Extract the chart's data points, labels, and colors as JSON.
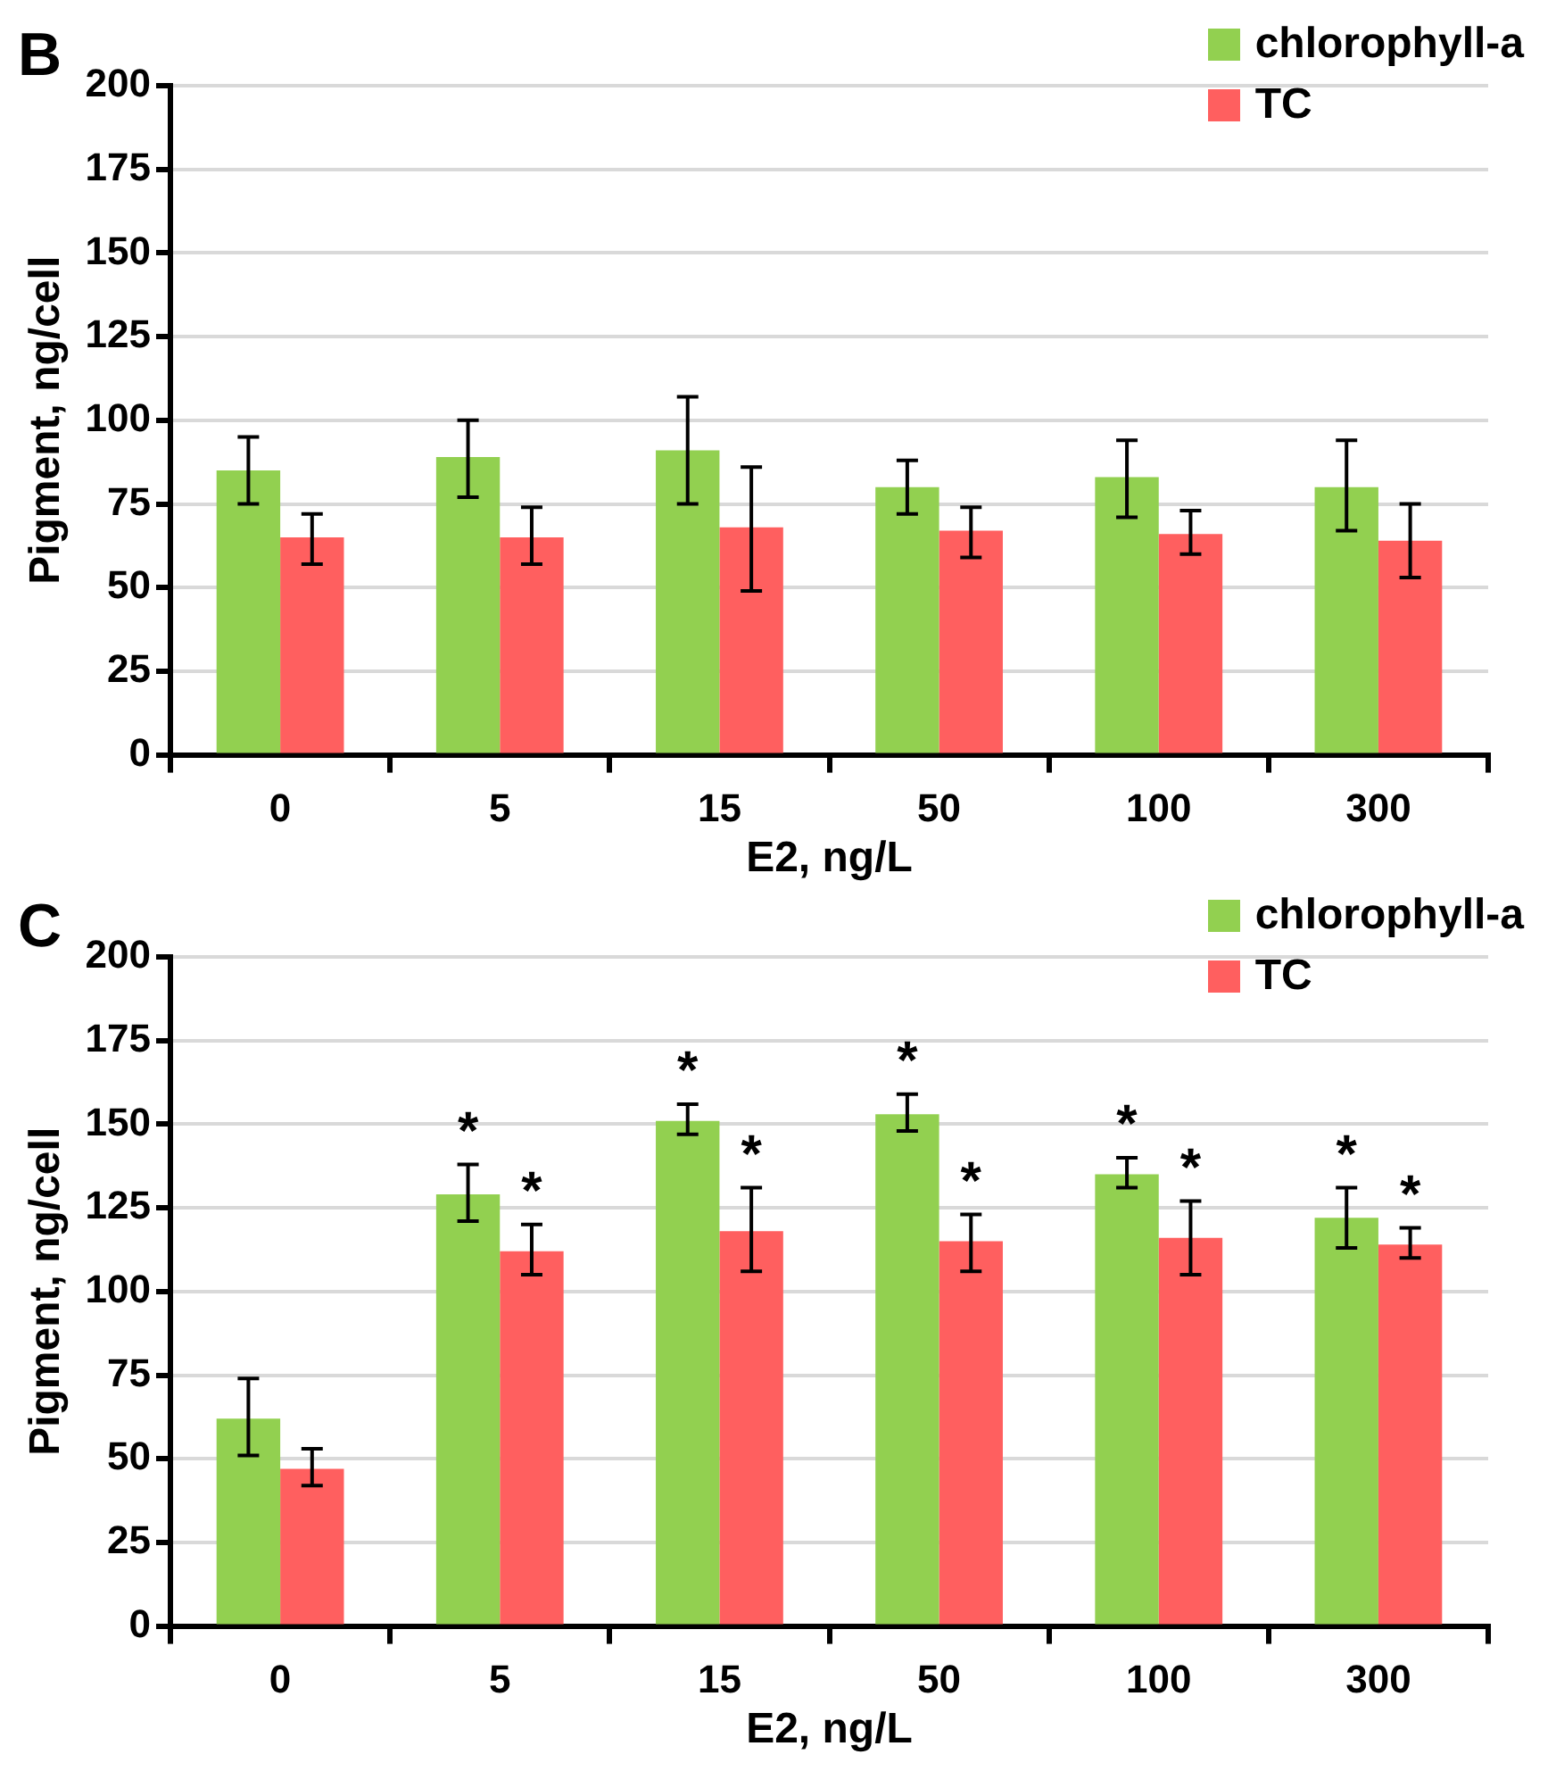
{
  "chart_data": [
    {
      "type": "bar",
      "title": "B",
      "xlabel": "E2, ng/L",
      "ylabel": "Pigment, ng/cell",
      "categories": [
        "0",
        "5",
        "15",
        "50",
        "100",
        "300"
      ],
      "series": [
        {
          "name": "chlorophyll-a",
          "color": "#92d050",
          "values": [
            85,
            89,
            91,
            80,
            83,
            80
          ],
          "errors": [
            [
              75,
              95
            ],
            [
              77,
              100
            ],
            [
              75,
              107
            ],
            [
              72,
              88
            ],
            [
              71,
              94
            ],
            [
              67,
              94
            ]
          ]
        },
        {
          "name": "TC",
          "color": "#ff5f5f",
          "values": [
            65,
            65,
            68,
            67,
            66,
            64
          ],
          "errors": [
            [
              57,
              72
            ],
            [
              57,
              74
            ],
            [
              49,
              86
            ],
            [
              59,
              74
            ],
            [
              60,
              73
            ],
            [
              53,
              75
            ]
          ]
        }
      ],
      "ylim": [
        0,
        200
      ],
      "yticks": [
        0,
        25,
        50,
        75,
        100,
        125,
        150,
        175,
        200
      ],
      "grid": "y",
      "legend": "top right"
    },
    {
      "type": "bar",
      "title": "C",
      "xlabel": "E2, ng/L",
      "ylabel": "Pigment, ng/cell",
      "categories": [
        "0",
        "5",
        "15",
        "50",
        "100",
        "300"
      ],
      "series": [
        {
          "name": "chlorophyll-a",
          "color": "#92d050",
          "values": [
            62,
            129,
            151,
            153,
            135,
            122
          ],
          "errors": [
            [
              51,
              74
            ],
            [
              121,
              138
            ],
            [
              147,
              156
            ],
            [
              148,
              159
            ],
            [
              131,
              140
            ],
            [
              113,
              131
            ]
          ],
          "value_labels": [
            null,
            "*",
            "*",
            "*",
            "*",
            "*"
          ]
        },
        {
          "name": "TC",
          "color": "#ff5f5f",
          "values": [
            47,
            112,
            118,
            115,
            116,
            114
          ],
          "errors": [
            [
              42,
              53
            ],
            [
              105,
              120
            ],
            [
              106,
              131
            ],
            [
              106,
              123
            ],
            [
              105,
              127
            ],
            [
              110,
              119
            ]
          ],
          "value_labels": [
            null,
            "*",
            "*",
            "*",
            "*",
            "*"
          ]
        }
      ],
      "ylim": [
        0,
        200
      ],
      "yticks": [
        0,
        25,
        50,
        75,
        100,
        125,
        150,
        175,
        200
      ],
      "grid": "y",
      "legend": "top right"
    }
  ]
}
